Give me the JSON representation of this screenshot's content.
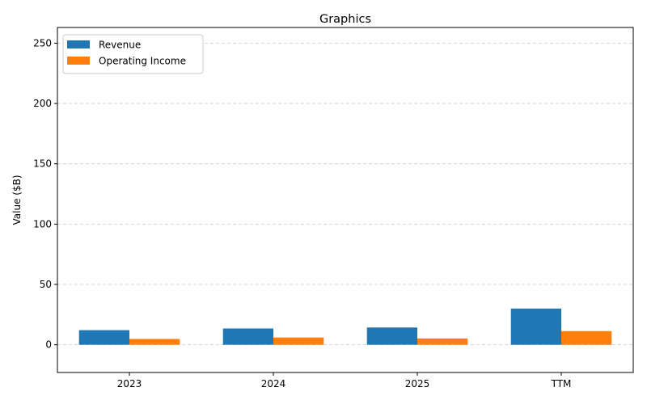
{
  "chart_data": {
    "type": "bar",
    "title": "Graphics",
    "xlabel": "",
    "ylabel": "Value ($B)",
    "categories": [
      "2023",
      "2024",
      "2025",
      "TTM"
    ],
    "series": [
      {
        "name": "Revenue",
        "color": "#1f77b4",
        "values": [
          12.1,
          13.5,
          14.3,
          30.0
        ]
      },
      {
        "name": "Operating Income",
        "color": "#ff7f0e",
        "values": [
          4.8,
          6.0,
          5.2,
          11.3
        ]
      }
    ],
    "ylim": [
      -23,
      263
    ],
    "yticks": [
      0,
      50,
      100,
      150,
      200,
      250
    ],
    "ytick_labels": [
      "0",
      "50",
      "100",
      "150",
      "200",
      "250"
    ],
    "grid": "y-dashed",
    "legend_position": "top-left"
  }
}
